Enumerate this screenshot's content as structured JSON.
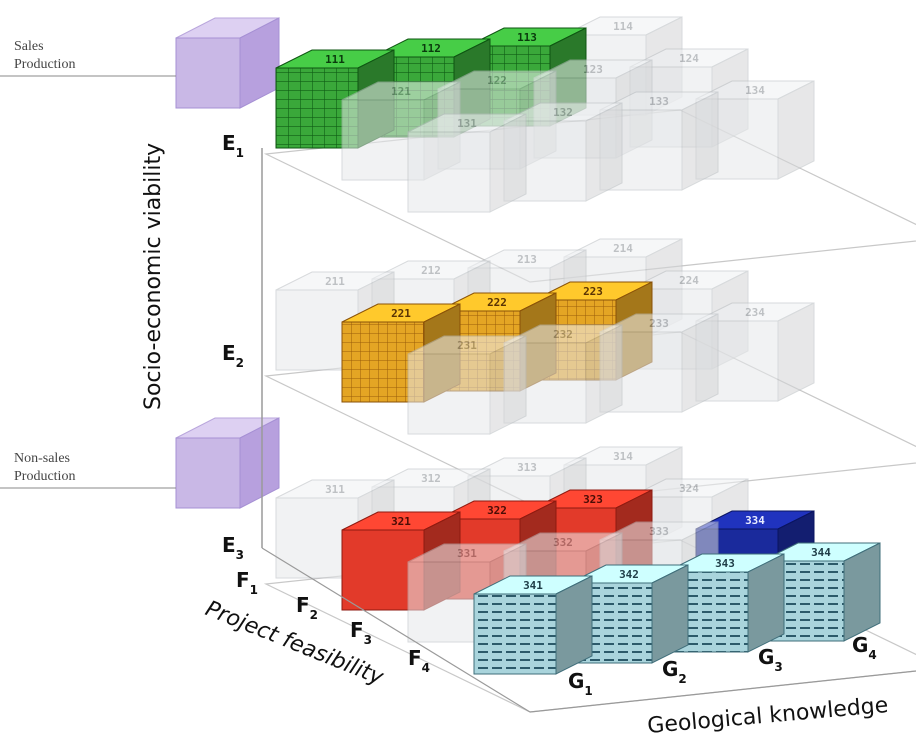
{
  "labels": {
    "sales_line1": "Sales",
    "sales_line2": "Production",
    "nonsales_line1": "Non-sales",
    "nonsales_line2": "Production",
    "y_axis_title": "Socio-economic viability",
    "f_axis_title": "Project feasibility",
    "g_axis_title": "Geological knowledge"
  },
  "levels": [
    {
      "key": "E1",
      "letter": "E",
      "sub": "1"
    },
    {
      "key": "E2",
      "letter": "E",
      "sub": "2"
    },
    {
      "key": "E3",
      "letter": "E",
      "sub": "3"
    }
  ],
  "f_axis": [
    {
      "letter": "F",
      "sub": "1"
    },
    {
      "letter": "F",
      "sub": "2"
    },
    {
      "letter": "F",
      "sub": "3"
    },
    {
      "letter": "F",
      "sub": "4"
    }
  ],
  "g_axis": [
    {
      "letter": "G",
      "sub": "1"
    },
    {
      "letter": "G",
      "sub": "2"
    },
    {
      "letter": "G",
      "sub": "3"
    },
    {
      "letter": "G",
      "sub": "4"
    }
  ],
  "colors": {
    "ghost": "#e6e8ea",
    "green": "#3aa83a",
    "orange": "#e4a524",
    "red": "#e23a2a",
    "light_blue": "#a9d4dc",
    "dark_blue": "#1a2a9c",
    "lavender": "#c9b8e6"
  },
  "cubes": [
    {
      "level": 0,
      "f": 0,
      "g": 0,
      "label": "111",
      "style": "green"
    },
    {
      "level": 0,
      "f": 0,
      "g": 1,
      "label": "112",
      "style": "green"
    },
    {
      "level": 0,
      "f": 0,
      "g": 2,
      "label": "113",
      "style": "green"
    },
    {
      "level": 0,
      "f": 0,
      "g": 3,
      "label": "114",
      "style": "ghost"
    },
    {
      "level": 0,
      "f": 1,
      "g": 0,
      "label": "121",
      "style": "ghost"
    },
    {
      "level": 0,
      "f": 1,
      "g": 1,
      "label": "122",
      "style": "ghost"
    },
    {
      "level": 0,
      "f": 1,
      "g": 2,
      "label": "123",
      "style": "ghost"
    },
    {
      "level": 0,
      "f": 1,
      "g": 3,
      "label": "124",
      "style": "ghost"
    },
    {
      "level": 0,
      "f": 2,
      "g": 0,
      "label": "131",
      "style": "ghost"
    },
    {
      "level": 0,
      "f": 2,
      "g": 1,
      "label": "132",
      "style": "ghost"
    },
    {
      "level": 0,
      "f": 2,
      "g": 2,
      "label": "133",
      "style": "ghost"
    },
    {
      "level": 0,
      "f": 2,
      "g": 3,
      "label": "134",
      "style": "ghost"
    },
    {
      "level": 1,
      "f": 0,
      "g": 0,
      "label": "211",
      "style": "ghost"
    },
    {
      "level": 1,
      "f": 0,
      "g": 1,
      "label": "212",
      "style": "ghost"
    },
    {
      "level": 1,
      "f": 0,
      "g": 2,
      "label": "213",
      "style": "ghost"
    },
    {
      "level": 1,
      "f": 0,
      "g": 3,
      "label": "214",
      "style": "ghost"
    },
    {
      "level": 1,
      "f": 1,
      "g": 0,
      "label": "221",
      "style": "orange"
    },
    {
      "level": 1,
      "f": 1,
      "g": 1,
      "label": "222",
      "style": "orange"
    },
    {
      "level": 1,
      "f": 1,
      "g": 2,
      "label": "223",
      "style": "orange"
    },
    {
      "level": 1,
      "f": 1,
      "g": 3,
      "label": "224",
      "style": "ghost"
    },
    {
      "level": 1,
      "f": 2,
      "g": 0,
      "label": "231",
      "style": "ghost"
    },
    {
      "level": 1,
      "f": 2,
      "g": 1,
      "label": "232",
      "style": "ghost"
    },
    {
      "level": 1,
      "f": 2,
      "g": 2,
      "label": "233",
      "style": "ghost"
    },
    {
      "level": 1,
      "f": 2,
      "g": 3,
      "label": "234",
      "style": "ghost"
    },
    {
      "level": 2,
      "f": 0,
      "g": 0,
      "label": "311",
      "style": "ghost"
    },
    {
      "level": 2,
      "f": 0,
      "g": 1,
      "label": "312",
      "style": "ghost"
    },
    {
      "level": 2,
      "f": 0,
      "g": 2,
      "label": "313",
      "style": "ghost"
    },
    {
      "level": 2,
      "f": 0,
      "g": 3,
      "label": "314",
      "style": "ghost"
    },
    {
      "level": 2,
      "f": 1,
      "g": 0,
      "label": "321",
      "style": "red"
    },
    {
      "level": 2,
      "f": 1,
      "g": 1,
      "label": "322",
      "style": "red"
    },
    {
      "level": 2,
      "f": 1,
      "g": 2,
      "label": "323",
      "style": "red"
    },
    {
      "level": 2,
      "f": 1,
      "g": 3,
      "label": "324",
      "style": "ghost"
    },
    {
      "level": 2,
      "f": 2,
      "g": 0,
      "label": "331",
      "style": "ghost"
    },
    {
      "level": 2,
      "f": 2,
      "g": 1,
      "label": "332",
      "style": "ghost"
    },
    {
      "level": 2,
      "f": 2,
      "g": 2,
      "label": "333",
      "style": "ghost"
    },
    {
      "level": 2,
      "f": 2,
      "g": 3,
      "label": "334",
      "style": "dark_blue"
    },
    {
      "level": 2,
      "f": 3,
      "g": 0,
      "label": "341",
      "style": "light_blue"
    },
    {
      "level": 2,
      "f": 3,
      "g": 1,
      "label": "342",
      "style": "light_blue"
    },
    {
      "level": 2,
      "f": 3,
      "g": 2,
      "label": "343",
      "style": "light_blue"
    },
    {
      "level": 2,
      "f": 3,
      "g": 3,
      "label": "344",
      "style": "light_blue"
    }
  ]
}
